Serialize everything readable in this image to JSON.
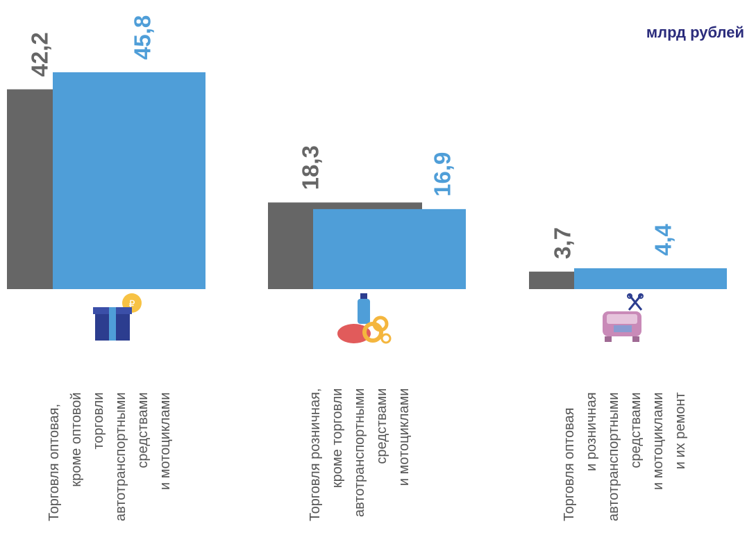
{
  "unit_label": "млрд рублей",
  "colors": {
    "series_a": "#666666",
    "series_b": "#4f9ed8",
    "unit": "#2b2c7c"
  },
  "chart_data": {
    "type": "bar",
    "title": "",
    "xlabel": "",
    "ylabel": "",
    "ylim": [
      0,
      45.8
    ],
    "grid": false,
    "categories": [
      "Торговля оптовая, кроме оптовой торговли автотранспортными средствами и мотоциклами",
      "Торговля розничная, кроме торговли автотранспортными средствами и мотоциклами",
      "Торговля оптовая и розничная автотранспортными средствами и мотоциклами и их ремонт"
    ],
    "category_label_lines": [
      [
        "Торговля оптовая,",
        "кроме оптовой",
        "торговли",
        "автотранспортными",
        "средствами",
        "и мотоциклами"
      ],
      [
        "Торговля розничная,",
        "кроме торговли",
        "автотранспортными",
        "средствами",
        "и мотоциклами"
      ],
      [
        "Торговля оптовая",
        "и розничная",
        "автотранспортными",
        "средствами",
        "и мотоциклами",
        "и их ремонт"
      ]
    ],
    "category_icons": [
      "gift-box-coin-icon",
      "grocery-bottle-sausage-bagels-icon",
      "car-repair-tools-icon"
    ],
    "series": [
      {
        "values": [
          42.2,
          18.3,
          3.7
        ],
        "labels": [
          "42,2",
          "18,3",
          "3,7"
        ],
        "color": "#666666"
      },
      {
        "values": [
          45.8,
          16.9,
          4.4
        ],
        "labels": [
          "45,8",
          "16,9",
          "4,4"
        ],
        "color": "#4f9ed8"
      }
    ]
  }
}
